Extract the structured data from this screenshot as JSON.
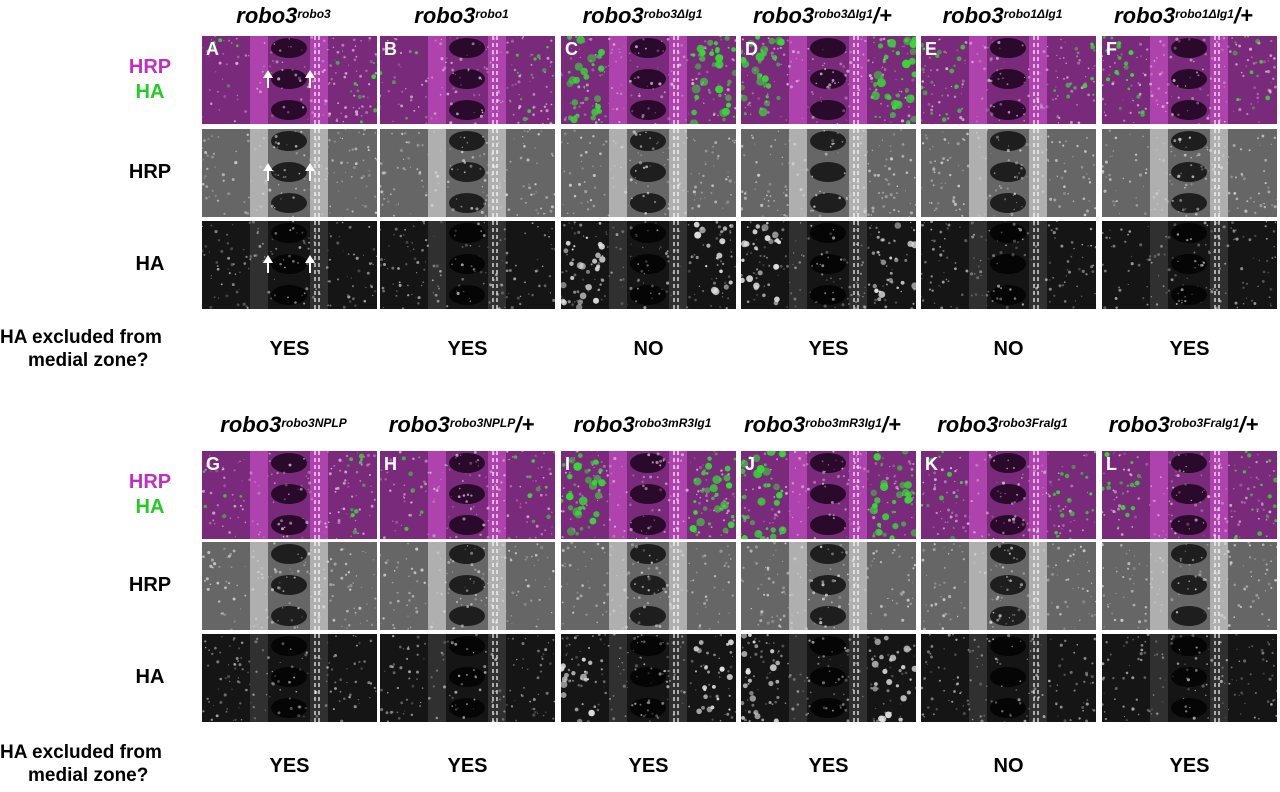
{
  "colors": {
    "hrp_label": "#c030c0",
    "ha_label": "#22cc22",
    "merge_bg": "#7a2a7a",
    "gray_bg": "#666666",
    "ha_bg": "#151515"
  },
  "question_line1": "HA excluded from",
  "question_line2": "medial zone?",
  "row_labels": {
    "merge_hrp": "HRP",
    "merge_ha": "HA",
    "hrp": "HRP",
    "ha": "HA"
  },
  "top_block": {
    "columns": [
      {
        "letter": "A",
        "gene": "robo3",
        "sup": "robo3",
        "suffix": "",
        "answer": "YES",
        "arrows": true,
        "green": "low"
      },
      {
        "letter": "B",
        "gene": "robo3",
        "sup": "robo1",
        "suffix": "",
        "answer": "YES",
        "arrows": false,
        "green": "low"
      },
      {
        "letter": "C",
        "gene": "robo3",
        "sup": "robo3ΔIg1",
        "suffix": "",
        "answer": "NO",
        "arrows": false,
        "green": "high"
      },
      {
        "letter": "D",
        "gene": "robo3",
        "sup": "robo3ΔIg1",
        "suffix": "/+",
        "answer": "YES",
        "arrows": false,
        "green": "high"
      },
      {
        "letter": "E",
        "gene": "robo3",
        "sup": "robo1ΔIg1",
        "suffix": "",
        "answer": "NO",
        "arrows": false,
        "green": "mid"
      },
      {
        "letter": "F",
        "gene": "robo3",
        "sup": "robo1ΔIg1",
        "suffix": "/+",
        "answer": "YES",
        "arrows": false,
        "green": "mid"
      }
    ]
  },
  "bottom_block": {
    "columns": [
      {
        "letter": "G",
        "gene": "robo3",
        "sup": "robo3NPLP",
        "suffix": "",
        "answer": "YES",
        "arrows": false,
        "green": "low"
      },
      {
        "letter": "H",
        "gene": "robo3",
        "sup": "robo3NPLP",
        "suffix": "/+",
        "answer": "YES",
        "arrows": false,
        "green": "low"
      },
      {
        "letter": "I",
        "gene": "robo3",
        "sup": "robo3mR3Ig1",
        "suffix": "",
        "answer": "YES",
        "arrows": false,
        "green": "high"
      },
      {
        "letter": "J",
        "gene": "robo3",
        "sup": "robo3mR3Ig1",
        "suffix": "/+",
        "answer": "YES",
        "arrows": false,
        "green": "high"
      },
      {
        "letter": "K",
        "gene": "robo3",
        "sup": "robo3FraIg1",
        "suffix": "",
        "answer": "NO",
        "arrows": false,
        "green": "mid"
      },
      {
        "letter": "L",
        "gene": "robo3",
        "sup": "robo3FraIg1",
        "suffix": "/+",
        "answer": "YES",
        "arrows": false,
        "green": "mid"
      }
    ]
  }
}
